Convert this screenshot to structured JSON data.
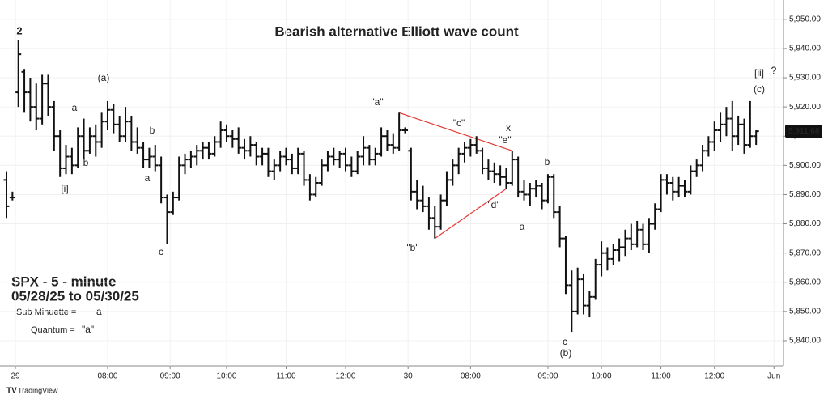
{
  "chart_data": {
    "type": "ohlc",
    "title": "Bearish alternative Elliott wave count",
    "legend_lines": [
      "SPX - 5 - minute",
      "05/28/25 to 05/30/25"
    ],
    "degree_key": [
      {
        "label": "Sub Minuette =",
        "mark": "a",
        "color": "#2f6fd6"
      },
      {
        "label": "Quantum =",
        "mark": "\"a\"",
        "color": "#d6336c"
      }
    ],
    "last_price": {
      "value": 5911.68,
      "label": "5,911.68"
    },
    "watermark": "TradingView",
    "color": "#111111",
    "ylim": [
      5831.4,
      5956.6
    ],
    "yticks": [
      {
        "value": 5840,
        "label": "5,840.00"
      },
      {
        "value": 5850,
        "label": "5,850.00"
      },
      {
        "value": 5860,
        "label": "5,860.00"
      },
      {
        "value": 5870,
        "label": "5,870.00"
      },
      {
        "value": 5880,
        "label": "5,880.00"
      },
      {
        "value": 5890,
        "label": "5,890.00"
      },
      {
        "value": 5900,
        "label": "5,900.00"
      },
      {
        "value": 5910,
        "label": "5,910.00"
      },
      {
        "value": 5920,
        "label": "5,920.00"
      },
      {
        "value": 5930,
        "label": "5,930.00"
      },
      {
        "value": 5940,
        "label": "5,940.00"
      },
      {
        "value": 5950,
        "label": "5,950.00"
      }
    ],
    "xlim": [
      -1.09,
      130.6
    ],
    "xticks": [
      {
        "value": 1.5,
        "label": "29"
      },
      {
        "value": 17,
        "label": "08:00"
      },
      {
        "value": 27.5,
        "label": "09:00"
      },
      {
        "value": 37,
        "label": "10:00"
      },
      {
        "value": 47,
        "label": "11:00"
      },
      {
        "value": 57,
        "label": "12:00"
      },
      {
        "value": 67.5,
        "label": "30"
      },
      {
        "value": 78,
        "label": "08:00"
      },
      {
        "value": 91,
        "label": "09:00"
      },
      {
        "value": 100,
        "label": "10:00"
      },
      {
        "value": 110,
        "label": "11:00"
      },
      {
        "value": 119,
        "label": "12:00"
      },
      {
        "value": 129,
        "label": "Jun"
      }
    ],
    "ohlc": [
      [
        5895,
        5898,
        5882,
        5886
      ],
      [
        5889,
        5891,
        5888,
        5889
      ],
      [
        5925,
        5943,
        5920,
        5938
      ],
      [
        5932,
        5933,
        5918,
        5925
      ],
      [
        5925,
        5930,
        5915,
        5920
      ],
      [
        5920,
        5928,
        5912,
        5916
      ],
      [
        5916,
        5931,
        5914,
        5928
      ],
      [
        5928,
        5931,
        5917,
        5920
      ],
      [
        5920,
        5922,
        5905,
        5910
      ],
      [
        5910,
        5912,
        5896,
        5899
      ],
      [
        5899,
        5907,
        5897,
        5903
      ],
      [
        5903,
        5906,
        5897,
        5900
      ],
      [
        5900,
        5913,
        5899,
        5910
      ],
      [
        5910,
        5916,
        5902,
        5905
      ],
      [
        5905,
        5913,
        5904,
        5910
      ],
      [
        5910,
        5914,
        5903,
        5908
      ],
      [
        5908,
        5918,
        5906,
        5915
      ],
      [
        5915,
        5922,
        5912,
        5919
      ],
      [
        5919,
        5921,
        5911,
        5914
      ],
      [
        5914,
        5917,
        5908,
        5910
      ],
      [
        5910,
        5920,
        5908,
        5915
      ],
      [
        5915,
        5917,
        5905,
        5908
      ],
      [
        5908,
        5913,
        5904,
        5906
      ],
      [
        5906,
        5908,
        5899,
        5902
      ],
      [
        5902,
        5906,
        5899,
        5903
      ],
      [
        5903,
        5907,
        5898,
        5900
      ],
      [
        5900,
        5903,
        5887,
        5889
      ],
      [
        5889,
        5890,
        5873,
        5884
      ],
      [
        5884,
        5891,
        5883,
        5889
      ],
      [
        5889,
        5903,
        5888,
        5900
      ],
      [
        5900,
        5904,
        5897,
        5902
      ],
      [
        5902,
        5905,
        5899,
        5903
      ],
      [
        5903,
        5907,
        5900,
        5905
      ],
      [
        5905,
        5908,
        5902,
        5906
      ],
      [
        5906,
        5908,
        5902,
        5904
      ],
      [
        5904,
        5910,
        5903,
        5908
      ],
      [
        5908,
        5915,
        5906,
        5912
      ],
      [
        5912,
        5914,
        5908,
        5910
      ],
      [
        5910,
        5912,
        5906,
        5909
      ],
      [
        5909,
        5913,
        5904,
        5906
      ],
      [
        5906,
        5909,
        5902,
        5905
      ],
      [
        5905,
        5910,
        5903,
        5907
      ],
      [
        5907,
        5908,
        5900,
        5903
      ],
      [
        5903,
        5906,
        5900,
        5904
      ],
      [
        5904,
        5906,
        5896,
        5898
      ],
      [
        5898,
        5902,
        5895,
        5900
      ],
      [
        5900,
        5905,
        5898,
        5903
      ],
      [
        5903,
        5906,
        5900,
        5902
      ],
      [
        5902,
        5904,
        5897,
        5899
      ],
      [
        5899,
        5906,
        5897,
        5904
      ],
      [
        5904,
        5905,
        5893,
        5895
      ],
      [
        5895,
        5897,
        5888,
        5890
      ],
      [
        5890,
        5896,
        5889,
        5894
      ],
      [
        5894,
        5902,
        5893,
        5900
      ],
      [
        5900,
        5905,
        5898,
        5903
      ],
      [
        5903,
        5906,
        5900,
        5902
      ],
      [
        5902,
        5905,
        5899,
        5904
      ],
      [
        5904,
        5906,
        5898,
        5900
      ],
      [
        5900,
        5903,
        5896,
        5898
      ],
      [
        5898,
        5905,
        5897,
        5903
      ],
      [
        5903,
        5910,
        5900,
        5906
      ],
      [
        5906,
        5907,
        5900,
        5902
      ],
      [
        5902,
        5906,
        5900,
        5904
      ],
      [
        5904,
        5913,
        5903,
        5910
      ],
      [
        5910,
        5912,
        5905,
        5907
      ],
      [
        5907,
        5911,
        5904,
        5906
      ],
      [
        5906,
        5918,
        5905,
        5912
      ],
      [
        5912,
        5913,
        5911,
        5912
      ],
      [
        5905,
        5906,
        5888,
        5891
      ],
      [
        5891,
        5895,
        5885,
        5888
      ],
      [
        5888,
        5893,
        5884,
        5886
      ],
      [
        5886,
        5889,
        5878,
        5882
      ],
      [
        5882,
        5886,
        5875,
        5879
      ],
      [
        5879,
        5890,
        5878,
        5888
      ],
      [
        5888,
        5898,
        5886,
        5895
      ],
      [
        5895,
        5902,
        5893,
        5900
      ],
      [
        5900,
        5906,
        5897,
        5904
      ],
      [
        5904,
        5908,
        5901,
        5906
      ],
      [
        5906,
        5909,
        5903,
        5907
      ],
      [
        5907,
        5910,
        5904,
        5905
      ],
      [
        5905,
        5906,
        5897,
        5899
      ],
      [
        5899,
        5902,
        5895,
        5898
      ],
      [
        5898,
        5901,
        5894,
        5897
      ],
      [
        5897,
        5900,
        5893,
        5896
      ],
      [
        5896,
        5899,
        5892,
        5894
      ],
      [
        5894,
        5905,
        5893,
        5902
      ],
      [
        5902,
        5903,
        5889,
        5891
      ],
      [
        5891,
        5895,
        5888,
        5890
      ],
      [
        5890,
        5894,
        5886,
        5892
      ],
      [
        5892,
        5895,
        5889,
        5893
      ],
      [
        5893,
        5894,
        5885,
        5888
      ],
      [
        5888,
        5897,
        5887,
        5896
      ],
      [
        5896,
        5897,
        5882,
        5884
      ],
      [
        5884,
        5886,
        5872,
        5875
      ],
      [
        5875,
        5876,
        5856,
        5859
      ],
      [
        5859,
        5864,
        5843,
        5850
      ],
      [
        5850,
        5865,
        5849,
        5861
      ],
      [
        5861,
        5863,
        5849,
        5852
      ],
      [
        5852,
        5857,
        5848,
        5855
      ],
      [
        5855,
        5868,
        5854,
        5866
      ],
      [
        5866,
        5874,
        5862,
        5870
      ],
      [
        5870,
        5872,
        5864,
        5868
      ],
      [
        5868,
        5873,
        5866,
        5871
      ],
      [
        5871,
        5875,
        5867,
        5872
      ],
      [
        5872,
        5878,
        5869,
        5875
      ],
      [
        5875,
        5880,
        5871,
        5873
      ],
      [
        5873,
        5881,
        5872,
        5878
      ],
      [
        5878,
        5880,
        5871,
        5873
      ],
      [
        5873,
        5882,
        5870,
        5880
      ],
      [
        5880,
        5887,
        5878,
        5885
      ],
      [
        5885,
        5897,
        5884,
        5895
      ],
      [
        5895,
        5897,
        5890,
        5894
      ],
      [
        5894,
        5896,
        5888,
        5891
      ],
      [
        5891,
        5896,
        5889,
        5893
      ],
      [
        5893,
        5895,
        5889,
        5891
      ],
      [
        5891,
        5900,
        5890,
        5898
      ],
      [
        5898,
        5902,
        5896,
        5900
      ],
      [
        5900,
        5907,
        5898,
        5905
      ],
      [
        5905,
        5910,
        5903,
        5908
      ],
      [
        5908,
        5915,
        5905,
        5912
      ],
      [
        5912,
        5918,
        5908,
        5914
      ],
      [
        5914,
        5920,
        5910,
        5916
      ],
      [
        5916,
        5922,
        5905,
        5910
      ],
      [
        5910,
        5917,
        5907,
        5914
      ],
      [
        5914,
        5916,
        5904,
        5907
      ],
      [
        5907,
        5922,
        5906,
        5910
      ],
      [
        5910,
        5912,
        5907,
        5911.68
      ]
    ],
    "annotations": [
      {
        "text": "2",
        "color": "#111111"
      },
      {
        "text": "a",
        "color": "#2f6fd6"
      },
      {
        "text": "(a)",
        "color": "#2f6fd6"
      },
      {
        "text": "b",
        "color": "#2f6fd6"
      },
      {
        "text": "[i]",
        "color": "#2f6fd6"
      },
      {
        "text": "b",
        "color": "#2f6fd6"
      },
      {
        "text": "a",
        "color": "#2f6fd6"
      },
      {
        "text": "c",
        "color": "#2f6fd6"
      },
      {
        "text": "\"a\"",
        "color": "#d6336c"
      },
      {
        "text": "\"b\"",
        "color": "#d6336c"
      },
      {
        "text": "\"c\"",
        "color": "#d6336c"
      },
      {
        "text": "\"d\"",
        "color": "#d6336c"
      },
      {
        "text": "\"e\"",
        "color": "#d6336c"
      },
      {
        "text": "x",
        "color": "#2f6fd6"
      },
      {
        "text": "b",
        "color": "#2f6fd6"
      },
      {
        "text": "a",
        "color": "#2f6fd6"
      },
      {
        "text": "c",
        "color": "#2f6fd6"
      },
      {
        "text": "(b)",
        "color": "#2f6fd6"
      },
      {
        "text": "[ii]",
        "color": "#2f6fd6"
      },
      {
        "text": "?",
        "color": "#2f6fd6"
      },
      {
        "text": "(c)",
        "color": "#2f6fd6"
      }
    ],
    "triangle_color": "#e53935"
  }
}
